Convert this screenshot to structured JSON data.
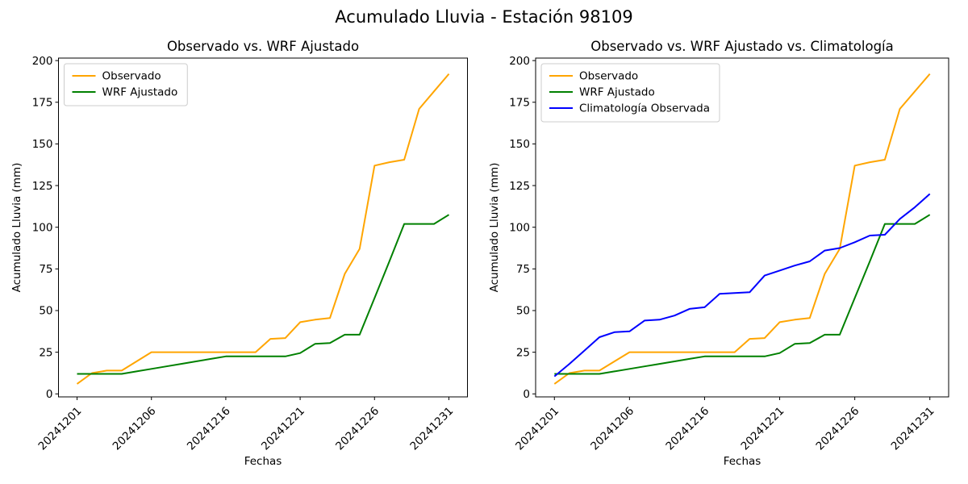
{
  "figure": {
    "suptitle": "Acumulado Lluvia - Estación 98109"
  },
  "chart_data": [
    {
      "type": "line",
      "title": "Observado vs. WRF Ajustado",
      "xlabel": "Fechas",
      "ylabel": "Acumulado Lluvia (mm)",
      "x_categories": [
        "20241201",
        "20241202",
        "20241203",
        "20241204",
        "20241205",
        "20241206",
        "20241207",
        "20241208",
        "20241209",
        "20241210",
        "20241216",
        "20241217",
        "20241218",
        "20241219",
        "20241220",
        "20241221",
        "20241222",
        "20241223",
        "20241224",
        "20241225",
        "20241226",
        "20241227",
        "20241228",
        "20241229",
        "20241230",
        "20241231"
      ],
      "x_tick_indices": [
        0,
        5,
        10,
        15,
        20,
        25
      ],
      "x_tick_labels": [
        "20241201",
        "20241206",
        "20241216",
        "20241221",
        "20241226",
        "20241231"
      ],
      "ylim": [
        0,
        200
      ],
      "yticks": [
        0,
        25,
        50,
        75,
        100,
        125,
        150,
        175,
        200
      ],
      "grid": false,
      "legend_position": "upper-left",
      "series": [
        {
          "name": "Observado",
          "color": "#FFA500",
          "values": [
            6,
            12.5,
            14,
            14,
            19.5,
            25,
            25,
            25,
            25,
            25,
            25,
            25,
            25,
            33,
            33.5,
            43,
            44.5,
            45.5,
            72,
            87,
            137,
            139,
            140.5,
            171,
            181.5,
            192
          ]
        },
        {
          "name": "WRF Ajustado",
          "color": "#008000",
          "values": [
            12,
            12,
            12,
            12,
            13.5,
            15,
            16.5,
            18,
            19.5,
            21,
            22.5,
            22.5,
            22.5,
            22.5,
            22.5,
            24.5,
            30,
            30.5,
            35.5,
            35.5,
            57.5,
            79.5,
            102,
            102,
            102,
            107.5
          ]
        }
      ]
    },
    {
      "type": "line",
      "title": "Observado vs. WRF Ajustado vs. Climatología",
      "xlabel": "Fechas",
      "ylabel": "Acumulado Lluvia (mm)",
      "x_categories": [
        "20241201",
        "20241202",
        "20241203",
        "20241204",
        "20241205",
        "20241206",
        "20241207",
        "20241208",
        "20241209",
        "20241210",
        "20241216",
        "20241217",
        "20241218",
        "20241219",
        "20241220",
        "20241221",
        "20241222",
        "20241223",
        "20241224",
        "20241225",
        "20241226",
        "20241227",
        "20241228",
        "20241229",
        "20241230",
        "20241231"
      ],
      "x_tick_indices": [
        0,
        5,
        10,
        15,
        20,
        25
      ],
      "x_tick_labels": [
        "20241201",
        "20241206",
        "20241216",
        "20241221",
        "20241226",
        "20241231"
      ],
      "ylim": [
        0,
        200
      ],
      "yticks": [
        0,
        25,
        50,
        75,
        100,
        125,
        150,
        175,
        200
      ],
      "grid": false,
      "legend_position": "upper-left",
      "series": [
        {
          "name": "Observado",
          "color": "#FFA500",
          "values": [
            6,
            12.5,
            14,
            14,
            19.5,
            25,
            25,
            25,
            25,
            25,
            25,
            25,
            25,
            33,
            33.5,
            43,
            44.5,
            45.5,
            72,
            87,
            137,
            139,
            140.5,
            171,
            181.5,
            192
          ]
        },
        {
          "name": "WRF Ajustado",
          "color": "#008000",
          "values": [
            12,
            12,
            12,
            12,
            13.5,
            15,
            16.5,
            18,
            19.5,
            21,
            22.5,
            22.5,
            22.5,
            22.5,
            22.5,
            24.5,
            30,
            30.5,
            35.5,
            35.5,
            57.5,
            79.5,
            102,
            102,
            102,
            107.5
          ]
        },
        {
          "name": "Climatología Observada",
          "color": "#0000FF",
          "values": [
            10.5,
            18,
            26,
            34,
            37,
            37.5,
            44,
            44.5,
            47,
            51,
            52,
            60,
            60.5,
            61,
            71,
            74,
            77,
            79.5,
            86,
            87.5,
            91,
            95,
            95.5,
            105,
            112,
            120
          ]
        }
      ]
    }
  ]
}
